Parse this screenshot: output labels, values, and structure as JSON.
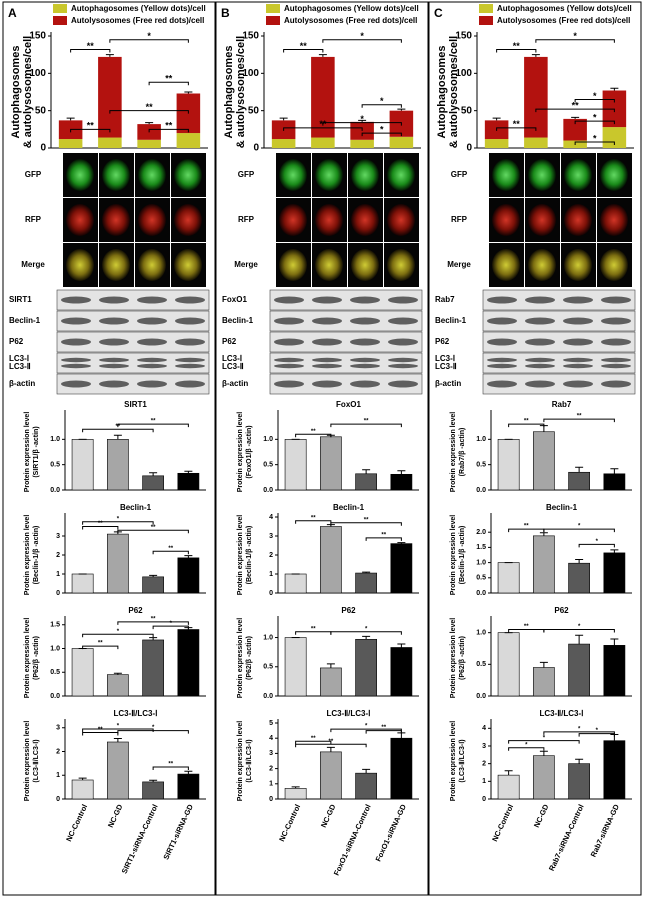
{
  "panels": [
    {
      "label": "A",
      "image_rows": [
        "GFP",
        "RFP",
        "Merge"
      ],
      "blots": [
        [
          "SIRT1"
        ],
        [
          "Beclin-1"
        ],
        [
          "P62"
        ],
        [
          "LC3-Ⅰ",
          "LC3-Ⅱ"
        ],
        [
          "β-actin"
        ]
      ]
    },
    {
      "label": "B",
      "image_rows": [
        "GFP",
        "RFP",
        "Merge"
      ],
      "blots": [
        [
          "FoxO1"
        ],
        [
          "Beclin-1"
        ],
        [
          "P62"
        ],
        [
          "LC3-Ⅰ",
          "LC3-Ⅱ"
        ],
        [
          "β-actin"
        ]
      ]
    },
    {
      "label": "C",
      "image_rows": [
        "GFP",
        "RFP",
        "Merge"
      ],
      "blots": [
        [
          "Rab7"
        ],
        [
          "Beclin-1"
        ],
        [
          "P62"
        ],
        [
          "LC3-Ⅰ",
          "LC3-Ⅱ"
        ],
        [
          "β-actin"
        ]
      ]
    }
  ],
  "chart_data": [
    {
      "type": "stacked_bar",
      "ylabel": [
        "Autophagosomes",
        "& autolysosomes/cell"
      ],
      "categories": [
        null,
        null,
        null,
        null
      ],
      "ylim": [
        0,
        150
      ],
      "yticks": [
        0,
        50,
        100,
        150
      ],
      "series": [
        {
          "name": "Autophagosomes (Yellow dots)/cell",
          "color": "#c9c72c",
          "values": [
            12,
            14,
            11,
            20
          ]
        },
        {
          "name": "Autolysosomes (Free red dots)/cell",
          "color": "#b3120f",
          "values": [
            25,
            108,
            21,
            53
          ],
          "errors": [
            3,
            3,
            2,
            2
          ]
        }
      ],
      "annotations": [
        {
          "text": "**",
          "between": [
            0,
            1
          ],
          "y": 132
        },
        {
          "text": "*",
          "between": [
            1,
            3
          ],
          "y": 145
        },
        {
          "text": "**",
          "between": [
            2,
            3
          ],
          "y": 88
        },
        {
          "text": "**",
          "between": [
            1,
            3
          ],
          "y": 50
        },
        {
          "text": "**",
          "between": [
            0,
            1
          ],
          "y": 25
        },
        {
          "text": "**",
          "between": [
            2,
            3
          ],
          "y": 25
        }
      ]
    },
    {
      "type": "bar",
      "title": "SIRT1",
      "ylabel": [
        "Protein expression level",
        "(SIRT1/β -actin)"
      ],
      "categories": [
        null,
        null,
        null,
        null
      ],
      "values": [
        1.0,
        1.0,
        0.28,
        0.33
      ],
      "errors": [
        0,
        0.08,
        0.06,
        0.04
      ],
      "colors": [
        "#d9d9d9",
        "#a6a6a6",
        "#595959",
        "#000000"
      ],
      "ylim": [
        0,
        1.5
      ],
      "yticks": [
        {
          "value": 0,
          "label": "0.0"
        },
        0.5,
        {
          "value": 1,
          "label": "1.0"
        }
      ],
      "annotations": [
        {
          "text": "**",
          "between": [
            0,
            2
          ],
          "y": 1.2
        },
        {
          "text": "**",
          "between": [
            1,
            3
          ],
          "y": 1.3
        }
      ]
    },
    {
      "type": "bar",
      "title": "Beclin-1",
      "ylabel": [
        "Protein expression level",
        "(Beclin-1/β -actin)"
      ],
      "categories": [
        null,
        null,
        null,
        null
      ],
      "values": [
        1,
        3.1,
        0.85,
        1.85
      ],
      "errors": [
        0,
        0.12,
        0.08,
        0.12
      ],
      "colors": [
        "#d9d9d9",
        "#a6a6a6",
        "#595959",
        "#000000"
      ],
      "ylim": [
        0,
        4
      ],
      "yticks": [
        0,
        1,
        2,
        3
      ],
      "annotations": [
        {
          "text": "*",
          "between": [
            0,
            2
          ],
          "y": 3.75
        },
        {
          "text": "**",
          "between": [
            0,
            1
          ],
          "y": 3.5
        },
        {
          "text": "**",
          "between": [
            1,
            3
          ],
          "y": 3.3
        },
        {
          "text": "**",
          "between": [
            2,
            3
          ],
          "y": 2.2
        }
      ]
    },
    {
      "type": "bar",
      "title": "P62",
      "ylabel": [
        "Protein expression level",
        "(P62/β -actin)"
      ],
      "categories": [
        null,
        null,
        null,
        null
      ],
      "values": [
        1.0,
        0.45,
        1.18,
        1.4
      ],
      "errors": [
        0,
        0.03,
        0.05,
        0.04
      ],
      "colors": [
        "#d9d9d9",
        "#a6a6a6",
        "#595959",
        "#000000"
      ],
      "ylim": [
        0,
        1.6
      ],
      "yticks": [
        {
          "value": 0,
          "label": "0.0"
        },
        0.5,
        {
          "value": 1,
          "label": "1.0"
        },
        1.5
      ],
      "annotations": [
        {
          "text": "**",
          "between": [
            1,
            3
          ],
          "y": 1.56
        },
        {
          "text": "*",
          "between": [
            2,
            3
          ],
          "y": 1.47
        },
        {
          "text": "*",
          "between": [
            0,
            2
          ],
          "y": 1.3
        },
        {
          "text": "**",
          "between": [
            0,
            1
          ],
          "y": 1.05
        }
      ]
    },
    {
      "type": "bar",
      "title": "LC3-Ⅱ/LC3-Ⅰ",
      "ylabel": [
        "Protein expression level",
        "(LC3-Ⅱ/LC3-Ⅰ)"
      ],
      "categories": [
        "NC-Control",
        "NC-GD",
        "SIRT1-siRNA-Control",
        "SIRT1-siRNA-GD"
      ],
      "values": [
        0.8,
        2.4,
        0.72,
        1.05
      ],
      "errors": [
        0.08,
        0.15,
        0.07,
        0.12
      ],
      "colors": [
        "#d9d9d9",
        "#a6a6a6",
        "#595959",
        "#000000"
      ],
      "ylim": [
        0,
        3.2
      ],
      "yticks": [
        0,
        1,
        2,
        3
      ],
      "annotations": [
        {
          "text": "*",
          "between": [
            0,
            2
          ],
          "y": 2.95
        },
        {
          "text": "**",
          "between": [
            0,
            1
          ],
          "y": 2.8
        },
        {
          "text": "*",
          "between": [
            1,
            3
          ],
          "y": 2.88
        },
        {
          "text": "**",
          "between": [
            2,
            3
          ],
          "y": 1.35
        }
      ]
    },
    {
      "type": "stacked_bar",
      "ylabel": [
        "Autophagosomes",
        "& autolysosomes/cell"
      ],
      "categories": [
        null,
        null,
        null,
        null
      ],
      "ylim": [
        0,
        150
      ],
      "yticks": [
        0,
        50,
        100,
        150
      ],
      "series": [
        {
          "name": "Autophagosomes (Yellow dots)/cell",
          "color": "#c9c72c",
          "values": [
            12,
            14,
            11,
            15
          ]
        },
        {
          "name": "Autolysosomes (Free red dots)/cell",
          "color": "#b3120f",
          "values": [
            25,
            108,
            24,
            35
          ],
          "errors": [
            3,
            3,
            2,
            2
          ]
        }
      ],
      "annotations": [
        {
          "text": "**",
          "between": [
            0,
            1
          ],
          "y": 132
        },
        {
          "text": "*",
          "between": [
            1,
            3
          ],
          "y": 145
        },
        {
          "text": "*",
          "between": [
            2,
            3
          ],
          "y": 58
        },
        {
          "text": "**",
          "between": [
            0,
            2
          ],
          "y": 27
        },
        {
          "text": "*",
          "between": [
            1,
            3
          ],
          "y": 34
        },
        {
          "text": "*",
          "between": [
            2,
            3
          ],
          "y": 20
        }
      ]
    },
    {
      "type": "bar",
      "title": "FoxO1",
      "ylabel": [
        "Protein expression level",
        "(FoxO1/β -actin)"
      ],
      "categories": [
        null,
        null,
        null,
        null
      ],
      "values": [
        1.0,
        1.05,
        0.32,
        0.31
      ],
      "errors": [
        0,
        0.03,
        0.08,
        0.07
      ],
      "colors": [
        "#d9d9d9",
        "#a6a6a6",
        "#595959",
        "#000000"
      ],
      "ylim": [
        0,
        1.5
      ],
      "yticks": [
        {
          "value": 0,
          "label": "0.0"
        },
        0.5,
        {
          "value": 1,
          "label": "1.0"
        }
      ],
      "annotations": [
        {
          "text": "**",
          "between": [
            0,
            1
          ],
          "y": 1.1
        },
        {
          "text": "**",
          "between": [
            1,
            3
          ],
          "y": 1.3
        }
      ]
    },
    {
      "type": "bar",
      "title": "Beclin-1",
      "ylabel": [
        "Protein expression level",
        "(Beclin-1/β -actin)"
      ],
      "categories": [
        null,
        null,
        null,
        null
      ],
      "values": [
        1,
        3.5,
        1.05,
        2.6
      ],
      "errors": [
        0,
        0.1,
        0.05,
        0.05
      ],
      "colors": [
        "#d9d9d9",
        "#a6a6a6",
        "#595959",
        "#000000"
      ],
      "ylim": [
        0,
        4
      ],
      "yticks": [
        0,
        1,
        2,
        3,
        4
      ],
      "annotations": [
        {
          "text": "**",
          "between": [
            0,
            1
          ],
          "y": 3.8
        },
        {
          "text": "**",
          "between": [
            1,
            3
          ],
          "y": 3.7
        },
        {
          "text": "**",
          "between": [
            2,
            3
          ],
          "y": 2.9
        }
      ]
    },
    {
      "type": "bar",
      "title": "P62",
      "ylabel": [
        "Protein expression level",
        "(P62/β -actin)"
      ],
      "categories": [
        null,
        null,
        null,
        null
      ],
      "values": [
        1.0,
        0.48,
        0.97,
        0.83
      ],
      "errors": [
        0,
        0.07,
        0.05,
        0.06
      ],
      "colors": [
        "#d9d9d9",
        "#a6a6a6",
        "#595959",
        "#000000"
      ],
      "ylim": [
        0,
        1.3
      ],
      "yticks": [
        {
          "value": 0,
          "label": "0.0"
        },
        0.5,
        {
          "value": 1,
          "label": "1.0"
        }
      ],
      "annotations": [
        {
          "text": "**",
          "between": [
            0,
            1
          ],
          "y": 1.1
        },
        {
          "text": "*",
          "between": [
            1,
            3
          ],
          "y": 1.1
        }
      ]
    },
    {
      "type": "bar",
      "title": "LC3-Ⅱ/LC3-Ⅰ",
      "ylabel": [
        "Protein expression level",
        "(LC3-Ⅱ/LC3-Ⅰ)"
      ],
      "categories": [
        "NC-Control",
        "NC-GD",
        "FoxO1-siRNA-Control",
        "FoxO1-siRNA-GD"
      ],
      "values": [
        0.7,
        3.1,
        1.7,
        4.0
      ],
      "errors": [
        0.1,
        0.3,
        0.25,
        0.35
      ],
      "colors": [
        "#d9d9d9",
        "#a6a6a6",
        "#595959",
        "#000000"
      ],
      "ylim": [
        0,
        5
      ],
      "yticks": [
        0,
        1,
        2,
        3,
        4,
        5
      ],
      "annotations": [
        {
          "text": "**",
          "between": [
            0,
            1
          ],
          "y": 3.8
        },
        {
          "text": "**",
          "between": [
            0,
            2
          ],
          "y": 3.6
        },
        {
          "text": "*",
          "between": [
            1,
            3
          ],
          "y": 4.6
        },
        {
          "text": "**",
          "between": [
            2,
            3
          ],
          "y": 4.5
        }
      ]
    },
    {
      "type": "stacked_bar",
      "ylabel": [
        "Autophagosomes",
        "& autolysosomes/cell"
      ],
      "categories": [
        null,
        null,
        null,
        null
      ],
      "ylim": [
        0,
        150
      ],
      "yticks": [
        0,
        50,
        100,
        150
      ],
      "series": [
        {
          "name": "Autophagosomes (Yellow dots)/cell",
          "color": "#c9c72c",
          "values": [
            12,
            14,
            10,
            28
          ]
        },
        {
          "name": "Autolysosomes (Free red dots)/cell",
          "color": "#b3120f",
          "values": [
            25,
            108,
            29,
            49
          ],
          "errors": [
            3,
            3,
            2,
            3
          ]
        }
      ],
      "annotations": [
        {
          "text": "**",
          "between": [
            0,
            1
          ],
          "y": 132
        },
        {
          "text": "*",
          "between": [
            1,
            3
          ],
          "y": 145
        },
        {
          "text": "*",
          "between": [
            2,
            3
          ],
          "y": 65
        },
        {
          "text": "**",
          "between": [
            1,
            3
          ],
          "y": 52
        },
        {
          "text": "**",
          "between": [
            0,
            1
          ],
          "y": 27
        },
        {
          "text": "*",
          "between": [
            2,
            3
          ],
          "y": 36
        },
        {
          "text": "*",
          "between": [
            2,
            3
          ],
          "y": 8
        }
      ]
    },
    {
      "type": "bar",
      "title": "Rab7",
      "ylabel": [
        "Protein expression level",
        "(Rab7/β -actin)"
      ],
      "categories": [
        null,
        null,
        null,
        null
      ],
      "values": [
        1.0,
        1.15,
        0.35,
        0.32
      ],
      "errors": [
        0,
        0.12,
        0.1,
        0.1
      ],
      "colors": [
        "#d9d9d9",
        "#a6a6a6",
        "#595959",
        "#000000"
      ],
      "ylim": [
        0,
        1.5
      ],
      "yticks": [
        {
          "value": 0,
          "label": "0.0"
        },
        0.5,
        {
          "value": 1,
          "label": "1.0"
        }
      ],
      "annotations": [
        {
          "text": "**",
          "between": [
            0,
            1
          ],
          "y": 1.3
        },
        {
          "text": "**",
          "between": [
            1,
            3
          ],
          "y": 1.4
        }
      ]
    },
    {
      "type": "bar",
      "title": "Beclin-1",
      "ylabel": [
        "Protein expression level",
        "(Beclin-1/β -actin)"
      ],
      "categories": [
        null,
        null,
        null,
        null
      ],
      "values": [
        1.0,
        1.88,
        0.98,
        1.32
      ],
      "errors": [
        0,
        0.1,
        0.12,
        0.1
      ],
      "colors": [
        "#d9d9d9",
        "#a6a6a6",
        "#595959",
        "#000000"
      ],
      "ylim": [
        0,
        2.5
      ],
      "yticks": [
        {
          "value": 0,
          "label": "0.0"
        },
        0.5,
        {
          "value": 1,
          "label": "1.0"
        },
        1.5,
        {
          "value": 2,
          "label": "2.0"
        }
      ],
      "annotations": [
        {
          "text": "**",
          "between": [
            0,
            1
          ],
          "y": 2.1
        },
        {
          "text": "*",
          "between": [
            1,
            3
          ],
          "y": 2.1
        },
        {
          "text": "*",
          "between": [
            2,
            3
          ],
          "y": 1.6
        }
      ]
    },
    {
      "type": "bar",
      "title": "P62",
      "ylabel": [
        "Protein expression level",
        "(P62/β -actin)"
      ],
      "categories": [
        null,
        null,
        null,
        null
      ],
      "values": [
        1.0,
        0.45,
        0.82,
        0.8
      ],
      "errors": [
        0,
        0.08,
        0.14,
        0.1
      ],
      "colors": [
        "#d9d9d9",
        "#a6a6a6",
        "#595959",
        "#000000"
      ],
      "ylim": [
        0,
        1.2
      ],
      "yticks": [
        {
          "value": 0,
          "label": "0.0"
        },
        0.5,
        {
          "value": 1,
          "label": "1.0"
        }
      ],
      "annotations": [
        {
          "text": "**",
          "between": [
            0,
            1
          ],
          "y": 1.05
        },
        {
          "text": "*",
          "between": [
            1,
            3
          ],
          "y": 1.05
        }
      ]
    },
    {
      "type": "bar",
      "title": "LC3-Ⅱ/LC3-Ⅰ",
      "ylabel": [
        "Protein expression level",
        "(LC3-Ⅱ/LC3-Ⅰ)"
      ],
      "categories": [
        "NC-Control",
        "NC-GD",
        "Rab7-siRNA-Control",
        "Rab7-siRNA-GD"
      ],
      "values": [
        1.35,
        2.45,
        2.0,
        3.3
      ],
      "errors": [
        0.25,
        0.25,
        0.25,
        0.35
      ],
      "colors": [
        "#d9d9d9",
        "#a6a6a6",
        "#595959",
        "#000000"
      ],
      "ylim": [
        0,
        4.3
      ],
      "yticks": [
        0,
        1,
        2,
        3,
        4
      ],
      "annotations": [
        {
          "text": "*",
          "between": [
            0,
            1
          ],
          "y": 2.9
        },
        {
          "text": "*",
          "between": [
            0,
            2
          ],
          "y": 3.3
        },
        {
          "text": "*",
          "between": [
            1,
            3
          ],
          "y": 3.8
        },
        {
          "text": "*",
          "between": [
            2,
            3
          ],
          "y": 3.7
        }
      ]
    }
  ]
}
